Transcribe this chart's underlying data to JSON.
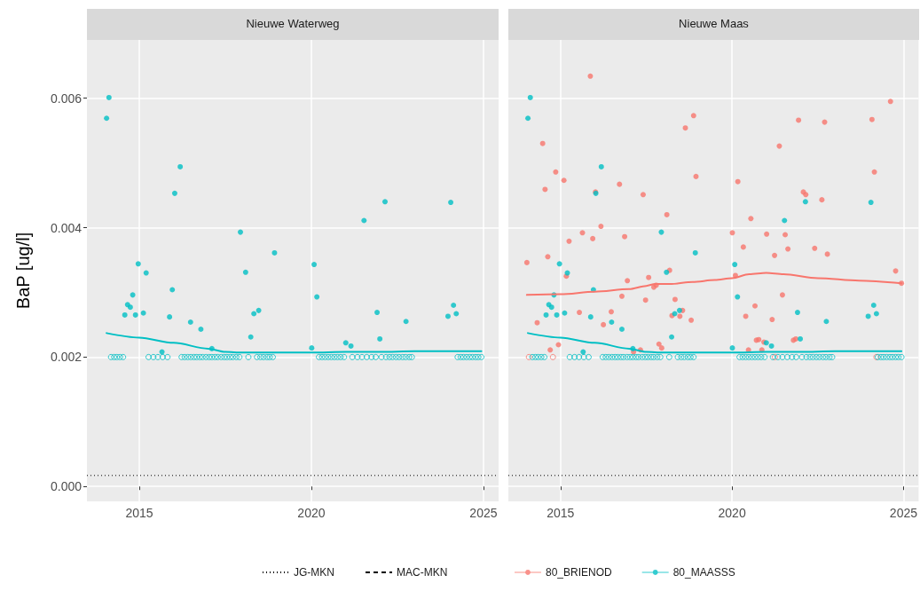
{
  "chart_data": [
    {
      "type": "scatter",
      "title": "Nieuwe Waterweg",
      "ylabel": "BaP [ug/l]",
      "xlim": [
        2013.48,
        2025.44
      ],
      "xticks": [
        2015,
        2020,
        2025
      ],
      "ylim": [
        -0.00023,
        0.0069
      ],
      "yticks": [
        {
          "value": 0,
          "label": "0.000"
        },
        {
          "value": 0.002,
          "label": "0.002"
        },
        {
          "value": 0.004,
          "label": "0.004"
        },
        {
          "value": 0.006,
          "label": "0.006"
        }
      ],
      "grid": true,
      "legend": "bottom",
      "ref_lines": [
        {
          "axis": "y",
          "value": 0.00017,
          "label": "JG-MKN",
          "line_style": "dotted",
          "color": "#000000"
        },
        {
          "axis": "y",
          "value": null,
          "label": "MAC-MKN",
          "line_style": "dashed",
          "color": "#000000"
        }
      ],
      "series": [
        {
          "color": "#00bfc4",
          "marker": "circle",
          "x": [
            2014.05,
            2014.12,
            2014.58,
            2014.66,
            2014.74,
            2014.81,
            2014.89,
            2014.97,
            2015.12,
            2015.2,
            2015.66,
            2015.88,
            2015.96,
            2016.03,
            2016.19,
            2016.49,
            2016.79,
            2017.11,
            2017.94,
            2018.09,
            2018.24,
            2018.33,
            2018.47,
            2018.93,
            2020.01,
            2020.08,
            2020.16,
            2021.0,
            2021.15,
            2021.53,
            2021.91,
            2021.99,
            2022.14,
            2022.75,
            2023.97,
            2024.05,
            2024.13,
            2024.21
          ],
          "values": [
            0.00569,
            0.00601,
            0.00265,
            0.00281,
            0.00277,
            0.00296,
            0.00265,
            0.00344,
            0.00268,
            0.0033,
            0.00208,
            0.00262,
            0.00304,
            0.00453,
            0.00494,
            0.00254,
            0.00243,
            0.00213,
            0.00393,
            0.00331,
            0.00231,
            0.00267,
            0.00272,
            0.00361,
            0.00214,
            0.00343,
            0.00293,
            0.00222,
            0.00217,
            0.00411,
            0.00269,
            0.00228,
            0.0044,
            0.00255,
            0.00263,
            0.00439,
            0.0028,
            0.00267
          ]
        },
        {
          "color": "#00bfc4",
          "marker": "circle-open",
          "x": [
            2014.18,
            2014.27,
            2014.35,
            2014.44,
            2014.53,
            2015.27,
            2015.41,
            2015.54,
            2015.68,
            2015.82,
            2016.23,
            2016.32,
            2016.41,
            2016.5,
            2016.59,
            2016.67,
            2016.76,
            2016.84,
            2016.94,
            2017.03,
            2017.11,
            2017.2,
            2017.28,
            2017.38,
            2017.47,
            2017.55,
            2017.64,
            2017.72,
            2017.82,
            2017.91,
            2018.17,
            2018.42,
            2018.52,
            2018.61,
            2018.71,
            2018.79,
            2018.88,
            2020.22,
            2020.31,
            2020.4,
            2020.49,
            2020.58,
            2020.67,
            2020.76,
            2020.85,
            2020.95,
            2021.19,
            2021.34,
            2021.47,
            2021.61,
            2021.75,
            2021.87,
            2022.04,
            2022.17,
            2022.27,
            2022.36,
            2022.46,
            2022.55,
            2022.65,
            2022.74,
            2022.84,
            2022.92,
            2024.25,
            2024.34,
            2024.42,
            2024.51,
            2024.6,
            2024.68,
            2024.77,
            2024.85,
            2024.94
          ],
          "values": [
            0.002,
            0.002,
            0.002,
            0.002,
            0.002,
            0.002,
            0.002,
            0.002,
            0.002,
            0.002,
            0.002,
            0.002,
            0.002,
            0.002,
            0.002,
            0.002,
            0.002,
            0.002,
            0.002,
            0.002,
            0.002,
            0.002,
            0.002,
            0.002,
            0.002,
            0.002,
            0.002,
            0.002,
            0.002,
            0.002,
            0.002,
            0.002,
            0.002,
            0.002,
            0.002,
            0.002,
            0.002,
            0.002,
            0.002,
            0.002,
            0.002,
            0.002,
            0.002,
            0.002,
            0.002,
            0.002,
            0.002,
            0.002,
            0.002,
            0.002,
            0.002,
            0.002,
            0.002,
            0.002,
            0.002,
            0.002,
            0.002,
            0.002,
            0.002,
            0.002,
            0.002,
            0.002,
            0.002,
            0.002,
            0.002,
            0.002,
            0.002,
            0.002,
            0.002,
            0.002,
            0.002
          ]
        },
        {
          "type": "line",
          "color": "#00bfc4",
          "marker": "none",
          "x": [
            2014.05,
            2015,
            2016,
            2017,
            2017.5,
            2018,
            2019,
            2020,
            2021,
            2022,
            2023,
            2024,
            2024.94
          ],
          "values": [
            0.00237,
            0.0023,
            0.00222,
            0.00213,
            0.00208,
            0.00207,
            0.00207,
            0.00207,
            0.00208,
            0.00208,
            0.00209,
            0.00209,
            0.00209
          ]
        }
      ]
    },
    {
      "type": "scatter",
      "title": "Nieuwe Maas",
      "xlim": [
        2013.48,
        2025.44
      ],
      "xticks": [
        2015,
        2020,
        2025
      ],
      "ylim": [
        -0.00023,
        0.0069
      ],
      "yticks": [
        0,
        0.002,
        0.004,
        0.006
      ],
      "tick_labels": "x",
      "grid": true,
      "legend": "bottom",
      "ref_lines": [
        {
          "axis": "y",
          "value": 0.00017,
          "line_style": "dotted",
          "color": "#000000"
        }
      ],
      "series": [
        {
          "name": "80_BRIENOD",
          "color": "#f8766d",
          "marker": "circle",
          "x": [
            2015.87,
            2018.88,
            2018.64,
            2014.48,
            2014.86,
            2015.1,
            2014.55,
            2018.95,
            2016.72,
            2017.41,
            2016.02,
            2018.1,
            2016.18,
            2015.64,
            2015.94,
            2016.87,
            2015.25,
            2014.02,
            2014.63,
            2015.17,
            2018.18,
            2016.95,
            2017.57,
            2017.72,
            2017.79,
            2016.79,
            2017.48,
            2018.34,
            2018.25,
            2018.48,
            2018.56,
            2018.81,
            2015.55,
            2016.48,
            2016.25,
            2014.32,
            2014.94,
            2014.7,
            2017.87,
            2017.95,
            2017.33,
            2017.13,
            2024.62,
            2021.94,
            2022.7,
            2024.08,
            2021.38,
            2024.15,
            2020.17,
            2022.08,
            2022.15,
            2022.62,
            2020.55,
            2020.01,
            2021.01,
            2021.55,
            2020.33,
            2021.63,
            2022.41,
            2021.24,
            2022.78,
            2024.77,
            2020.1,
            2024.94,
            2021.47,
            2020.67,
            2020.4,
            2021.17,
            2020.71,
            2020.78,
            2020.93,
            2021.79,
            2021.86,
            2020.48,
            2020.87
          ],
          "values": [
            0.00634,
            0.00573,
            0.00554,
            0.0053,
            0.00486,
            0.00473,
            0.00459,
            0.00479,
            0.00467,
            0.00451,
            0.00455,
            0.0042,
            0.00402,
            0.00392,
            0.00383,
            0.00386,
            0.00379,
            0.00346,
            0.00355,
            0.00325,
            0.00334,
            0.00318,
            0.00323,
            0.00308,
            0.00311,
            0.00294,
            0.00288,
            0.00289,
            0.00264,
            0.00263,
            0.00272,
            0.00257,
            0.00269,
            0.0027,
            0.0025,
            0.00253,
            0.00219,
            0.00211,
            0.0022,
            0.00214,
            0.00211,
            0.00208,
            0.00595,
            0.00566,
            0.00563,
            0.00567,
            0.00526,
            0.00486,
            0.00471,
            0.00455,
            0.00451,
            0.00443,
            0.00414,
            0.00392,
            0.0039,
            0.00389,
            0.0037,
            0.00367,
            0.00368,
            0.00357,
            0.00359,
            0.00333,
            0.00326,
            0.00314,
            0.00296,
            0.00279,
            0.00263,
            0.00258,
            0.00226,
            0.00227,
            0.00223,
            0.00226,
            0.00228,
            0.00211,
            0.00211
          ]
        },
        {
          "color": "#f8766d",
          "marker": "circle-open",
          "x": [
            2014.08,
            2014.78,
            2021.25,
            2024.21
          ],
          "values": [
            0.002,
            0.002,
            0.002,
            0.002
          ]
        },
        {
          "name": "80_MAASSS",
          "color": "#00bfc4",
          "marker": "circle",
          "x": [
            2014.05,
            2014.12,
            2014.58,
            2014.66,
            2014.74,
            2014.81,
            2014.89,
            2014.97,
            2015.12,
            2015.2,
            2015.66,
            2015.88,
            2015.96,
            2016.03,
            2016.19,
            2016.49,
            2016.79,
            2017.11,
            2017.94,
            2018.09,
            2018.24,
            2018.33,
            2018.47,
            2018.93,
            2020.01,
            2020.08,
            2020.16,
            2021.0,
            2021.15,
            2021.53,
            2021.91,
            2021.99,
            2022.14,
            2022.75,
            2023.97,
            2024.05,
            2024.13,
            2024.21
          ],
          "values": [
            0.00569,
            0.00601,
            0.00265,
            0.00281,
            0.00277,
            0.00296,
            0.00265,
            0.00344,
            0.00268,
            0.0033,
            0.00208,
            0.00262,
            0.00304,
            0.00453,
            0.00494,
            0.00254,
            0.00243,
            0.00213,
            0.00393,
            0.00331,
            0.00231,
            0.00267,
            0.00272,
            0.00361,
            0.00214,
            0.00343,
            0.00293,
            0.00222,
            0.00217,
            0.00411,
            0.00269,
            0.00228,
            0.0044,
            0.00255,
            0.00263,
            0.00439,
            0.0028,
            0.00267
          ]
        },
        {
          "color": "#00bfc4",
          "marker": "circle-open",
          "x": [
            2014.18,
            2014.27,
            2014.35,
            2014.44,
            2014.53,
            2015.27,
            2015.41,
            2015.54,
            2015.68,
            2015.82,
            2016.23,
            2016.32,
            2016.41,
            2016.5,
            2016.59,
            2016.67,
            2016.76,
            2016.84,
            2016.94,
            2017.03,
            2017.11,
            2017.2,
            2017.28,
            2017.38,
            2017.47,
            2017.55,
            2017.64,
            2017.72,
            2017.82,
            2017.91,
            2018.17,
            2018.42,
            2018.52,
            2018.61,
            2018.71,
            2018.79,
            2018.88,
            2020.22,
            2020.31,
            2020.4,
            2020.49,
            2020.58,
            2020.67,
            2020.76,
            2020.85,
            2020.95,
            2021.19,
            2021.34,
            2021.47,
            2021.61,
            2021.75,
            2021.87,
            2022.04,
            2022.17,
            2022.27,
            2022.36,
            2022.46,
            2022.55,
            2022.65,
            2022.74,
            2022.84,
            2022.92,
            2024.25,
            2024.34,
            2024.42,
            2024.51,
            2024.6,
            2024.68,
            2024.77,
            2024.85,
            2024.94
          ],
          "values": [
            0.002,
            0.002,
            0.002,
            0.002,
            0.002,
            0.002,
            0.002,
            0.002,
            0.002,
            0.002,
            0.002,
            0.002,
            0.002,
            0.002,
            0.002,
            0.002,
            0.002,
            0.002,
            0.002,
            0.002,
            0.002,
            0.002,
            0.002,
            0.002,
            0.002,
            0.002,
            0.002,
            0.002,
            0.002,
            0.002,
            0.002,
            0.002,
            0.002,
            0.002,
            0.002,
            0.002,
            0.002,
            0.002,
            0.002,
            0.002,
            0.002,
            0.002,
            0.002,
            0.002,
            0.002,
            0.002,
            0.002,
            0.002,
            0.002,
            0.002,
            0.002,
            0.002,
            0.002,
            0.002,
            0.002,
            0.002,
            0.002,
            0.002,
            0.002,
            0.002,
            0.002,
            0.002,
            0.002,
            0.002,
            0.002,
            0.002,
            0.002,
            0.002,
            0.002,
            0.002,
            0.002
          ]
        },
        {
          "type": "line",
          "color": "#f8766d",
          "marker": "none",
          "x": [
            2014.02,
            2015,
            2016,
            2017,
            2017.5,
            2017.76,
            2018.24,
            2018.85,
            2019.5,
            2020,
            2020.5,
            2021,
            2021.5,
            2022.5,
            2023.7,
            2024.94
          ],
          "values": [
            0.00296,
            0.00297,
            0.00301,
            0.00305,
            0.0031,
            0.00313,
            0.00313,
            0.00316,
            0.00319,
            0.00322,
            0.00328,
            0.0033,
            0.00328,
            0.00322,
            0.00318,
            0.00314
          ]
        },
        {
          "type": "line",
          "color": "#00bfc4",
          "marker": "none",
          "x": [
            2014.05,
            2015,
            2016,
            2017,
            2017.5,
            2018,
            2019,
            2020,
            2021,
            2022,
            2023,
            2024,
            2024.94
          ],
          "values": [
            0.00237,
            0.0023,
            0.00222,
            0.00213,
            0.00208,
            0.00207,
            0.00207,
            0.00207,
            0.00208,
            0.00208,
            0.00209,
            0.00209,
            0.00209
          ]
        }
      ]
    }
  ]
}
